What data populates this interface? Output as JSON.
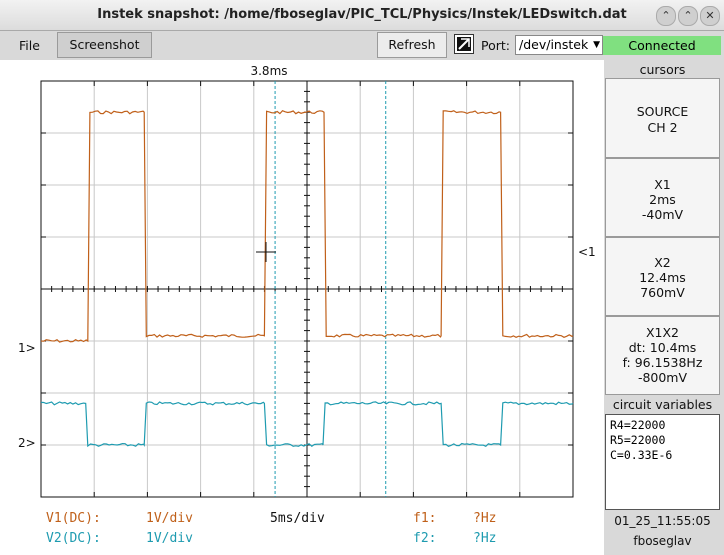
{
  "window": {
    "title": "Instek snapshot: /home/fboseglav/PIC_TCL/Physics/Instek/LEDswitch.dat"
  },
  "menu": {
    "file": "File",
    "screenshot": "Screenshot"
  },
  "toolbar": {
    "refresh": "Refresh",
    "port_label": "Port:",
    "port_value": "/dev/instek",
    "status": "Connected"
  },
  "scope": {
    "cursor_time": "3.8ms",
    "ch1_marker": "1>",
    "ch2_marker": "2>",
    "trigger_marker": "<1"
  },
  "cursors": {
    "header": "cursors",
    "source_label": "SOURCE",
    "source_value": "CH 2",
    "x1_label": "X1",
    "x1_time": "2ms",
    "x1_volt": "-40mV",
    "x2_label": "X2",
    "x2_time": "12.4ms",
    "x2_volt": "760mV",
    "x1x2_label": "X1X2",
    "dt": "dt: 10.4ms",
    "f": "f: 96.1538Hz",
    "dv": "-800mV"
  },
  "circuit": {
    "header": "circuit variables",
    "lines": [
      "R4=22000",
      "R5=22000",
      "C=0.33E-6"
    ]
  },
  "bottom": {
    "v1_label": "V1(DC):",
    "v1_scale": "1V/div",
    "timebase": "5ms/div",
    "f1_label": "f1:",
    "f1_value": "?Hz",
    "v2_label": "V2(DC):",
    "v2_scale": "1V/div",
    "f2_label": "f2:",
    "f2_value": "?Hz",
    "timestamp": "01_25_11:55:05",
    "user": "fboseglav"
  },
  "colors": {
    "ch1": "#c0601a",
    "ch2": "#1e9bb0",
    "connected": "#80e080"
  },
  "chart_data": {
    "type": "line",
    "x_unit": "ms",
    "xlim": [
      -25,
      25
    ],
    "ylim": [
      -4,
      4
    ],
    "y_unit": "div",
    "series": [
      {
        "name": "V1",
        "x": [
          -25,
          -20.6,
          -20.4,
          -15.3,
          -15.1,
          -4,
          -3.8,
          1.6,
          1.8,
          12.6,
          12.8,
          18.2,
          18.4,
          25
        ],
        "y": [
          -1.0,
          -1.0,
          3.4,
          3.4,
          -0.9,
          -0.9,
          3.4,
          3.4,
          -0.9,
          -0.9,
          3.4,
          3.4,
          -0.9,
          -0.9
        ]
      },
      {
        "name": "V2",
        "x": [
          -25,
          -20.8,
          -20.6,
          -15.3,
          -15.1,
          -4,
          -3.8,
          1.5,
          1.7,
          12.6,
          12.8,
          18.2,
          18.4,
          25
        ],
        "y": [
          -2.2,
          -2.2,
          -3.0,
          -3.0,
          -2.2,
          -2.2,
          -3.0,
          -3.0,
          -2.2,
          -2.2,
          -3.0,
          -3.0,
          -2.2,
          -2.2
        ]
      }
    ],
    "cursors_ms": [
      -3.0,
      7.4
    ]
  }
}
